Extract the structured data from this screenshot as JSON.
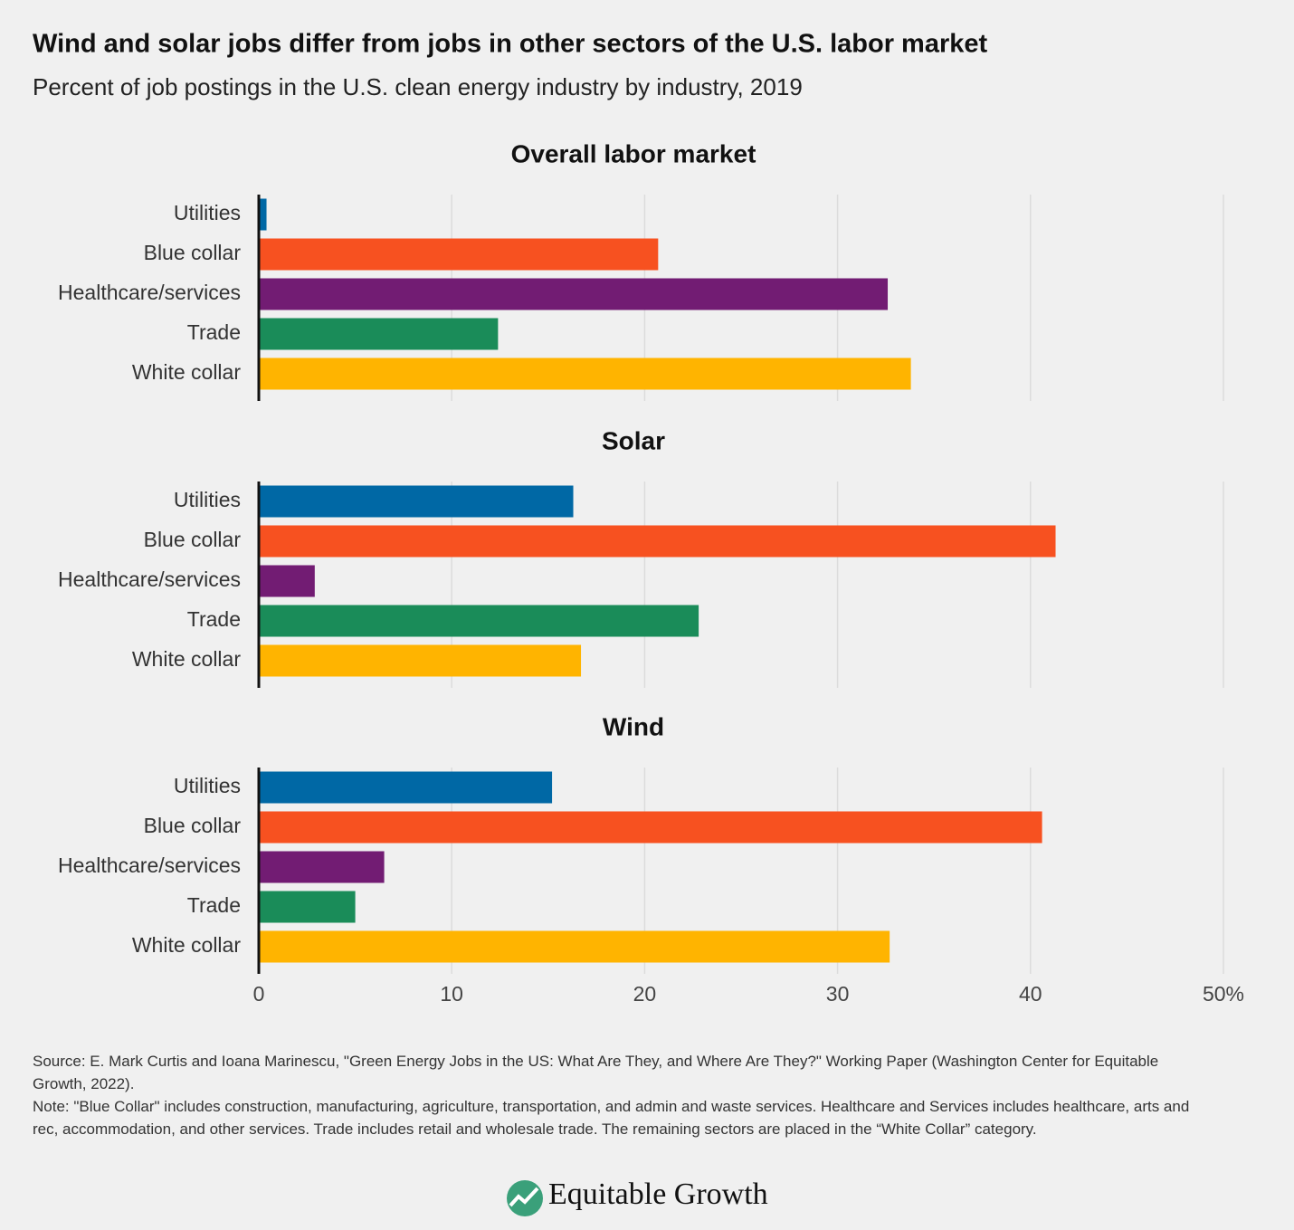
{
  "title": "Wind and solar jobs differ from jobs in other sectors of the U.S. labor market",
  "subtitle": "Percent of job postings in the U.S. clean energy industry by industry, 2019",
  "chart_data": [
    {
      "type": "bar",
      "title": "Overall labor market",
      "categories": [
        "Utilities",
        "Blue collar",
        "Healthcare/services",
        "Trade",
        "White collar"
      ],
      "values": [
        0.4,
        20.7,
        32.6,
        12.4,
        33.8
      ],
      "colors": [
        "#0068a5",
        "#f75120",
        "#721c73",
        "#1a8c59",
        "#ffb400"
      ],
      "xlim": [
        0,
        50
      ],
      "xticks": [
        0,
        10,
        20,
        30,
        40,
        50
      ],
      "grid": true
    },
    {
      "type": "bar",
      "title": "Solar",
      "categories": [
        "Utilities",
        "Blue collar",
        "Healthcare/services",
        "Trade",
        "White collar"
      ],
      "values": [
        16.3,
        41.3,
        2.9,
        22.8,
        16.7
      ],
      "colors": [
        "#0068a5",
        "#f75120",
        "#721c73",
        "#1a8c59",
        "#ffb400"
      ],
      "xlim": [
        0,
        50
      ],
      "xticks": [
        0,
        10,
        20,
        30,
        40,
        50
      ],
      "grid": true
    },
    {
      "type": "bar",
      "title": "Wind",
      "categories": [
        "Utilities",
        "Blue collar",
        "Healthcare/services",
        "Trade",
        "White collar"
      ],
      "values": [
        15.2,
        40.6,
        6.5,
        5.0,
        32.7
      ],
      "colors": [
        "#0068a5",
        "#f75120",
        "#721c73",
        "#1a8c59",
        "#ffb400"
      ],
      "xlim": [
        0,
        50
      ],
      "xticks": [
        0,
        10,
        20,
        30,
        40,
        {
          "value": 50,
          "label": "50%"
        }
      ],
      "grid": true
    }
  ],
  "source": "Source: E. Mark Curtis and Ioana Marinescu, \"Green Energy Jobs in the US: What Are They, and Where Are They?\" Working Paper (Washington Center for Equitable Growth, 2022).",
  "note": "Note: \"Blue Collar\" includes construction, manufacturing, agriculture, transportation, and admin and waste services. Healthcare and Services includes healthcare, arts and rec, accommodation, and other services. Trade includes retail and wholesale trade. The remaining sectors are placed in the “White Collar” category.",
  "logo": "Equitable Growth"
}
